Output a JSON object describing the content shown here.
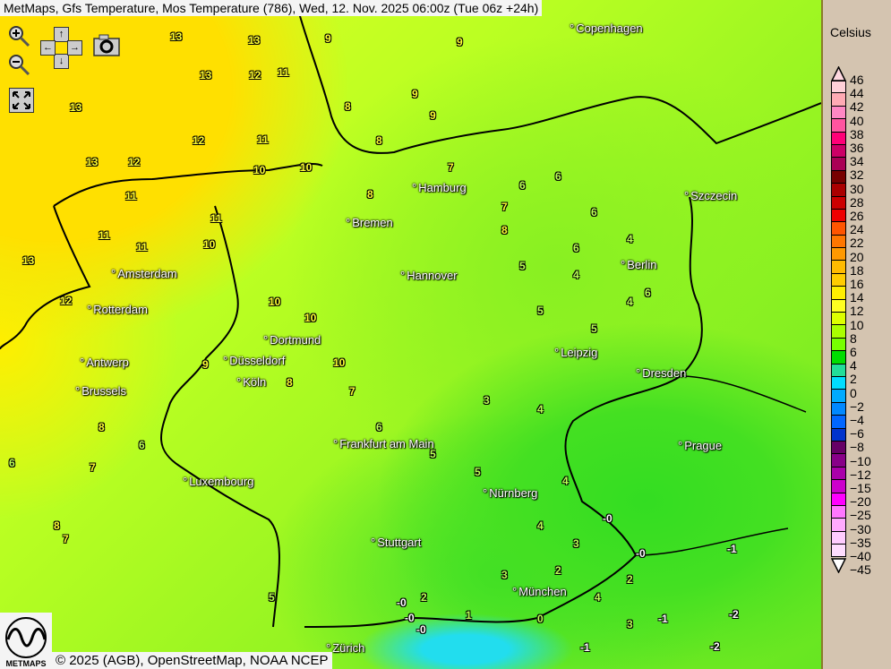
{
  "title": "MetMaps, Gfs Temperature, Mos Temperature (786), Wed, 12. Nov. 2025 06:00z (Tue 06z +24h)",
  "controls": {
    "zoom_in": "zoom-in-icon",
    "zoom_out": "zoom-out-icon",
    "pan_up": "↑",
    "pan_down": "↓",
    "pan_left": "←",
    "pan_right": "→",
    "screenshot": "camera-icon",
    "fullscreen": "fullscreen-icon"
  },
  "cities": [
    "Copenhagen",
    "Hamburg",
    "Szczecin",
    "Bremen",
    "Berlin",
    "Amsterdam",
    "Hannover",
    "Rotterdam",
    "Dortmund",
    "Leipzig",
    "Antwerp",
    "Düsseldorf",
    "Dresden",
    "Köln",
    "Brussels",
    "Prague",
    "Frankfurt am Main",
    "Luxembourg",
    "Nürnberg",
    "Stuttgart",
    "München",
    "Zürich"
  ],
  "stations": [
    "13",
    "13",
    "13",
    "13",
    "12",
    "11",
    "13",
    "12",
    "12",
    "11",
    "13",
    "12",
    "11",
    "10",
    "11",
    "11",
    "11",
    "10",
    "9",
    "8",
    "9",
    "9",
    "9",
    "8",
    "10",
    "8",
    "7",
    "7",
    "6",
    "6",
    "8",
    "6",
    "5",
    "6",
    "5",
    "4",
    "4",
    "5",
    "4",
    "10",
    "10",
    "9",
    "8",
    "7",
    "6",
    "5",
    "5",
    "4",
    "4",
    "3",
    "2",
    "3",
    "2",
    "-0",
    "-0",
    "-0",
    "-1",
    "-1",
    "-2",
    "-2",
    "-0",
    "-1",
    "-0",
    "4",
    "3",
    "2",
    "1",
    "0",
    "8",
    "7",
    "6",
    "8",
    "6",
    "7",
    "5",
    "3",
    "4",
    "6",
    "10"
  ],
  "legend": {
    "title": "Celsius",
    "labels": [
      "46",
      "44",
      "42",
      "40",
      "38",
      "36",
      "34",
      "32",
      "30",
      "28",
      "26",
      "24",
      "22",
      "20",
      "18",
      "16",
      "14",
      "12",
      "10",
      "8",
      "6",
      "4",
      "2",
      "0",
      "−2",
      "−4",
      "−6",
      "−8",
      "−10",
      "−12",
      "−15",
      "−20",
      "−25",
      "−30",
      "−35",
      "−40",
      "−45"
    ],
    "colors": [
      "#ffd0d8",
      "#ffaab4",
      "#ff88c4",
      "#ff55a0",
      "#ff0077",
      "#cc0066",
      "#aa0055",
      "#770000",
      "#aa0000",
      "#cc0000",
      "#ee0000",
      "#ff5500",
      "#ff7700",
      "#ff9900",
      "#ffbb00",
      "#ffcc00",
      "#ffee00",
      "#ffff22",
      "#ddff00",
      "#aaff00",
      "#77ff00",
      "#00dd00",
      "#22dd99",
      "#00ddff",
      "#00aaff",
      "#0088ff",
      "#0066ff",
      "#0033cc",
      "#660066",
      "#880088",
      "#aa00aa",
      "#cc00cc",
      "#ff00ff",
      "#ff77ff",
      "#ffaaff",
      "#ffccff",
      "#ffddff"
    ]
  },
  "footer": {
    "copyright": "© 2025 (AGB), OpenStreetMap, NOAA NCEP",
    "logo_text": "METMAPS"
  }
}
